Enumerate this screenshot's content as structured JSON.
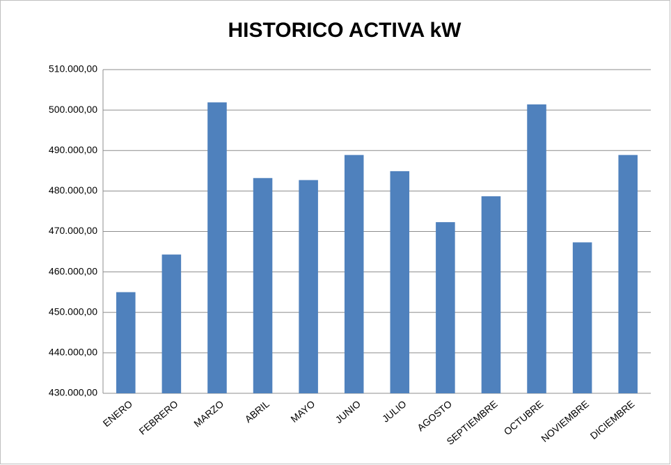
{
  "chart_data": {
    "type": "bar",
    "title": "HISTORICO ACTIVA kW",
    "categories": [
      "ENERO",
      "FEBRERO",
      "MARZO",
      "ABRIL",
      "MAYO",
      "JUNIO",
      "JULIO",
      "AGOSTO",
      "SEPTIEMBRE",
      "OCTUBRE",
      "NOVIEMBRE",
      "DICIEMBRE"
    ],
    "values": [
      455000,
      464300,
      501900,
      483200,
      482700,
      488900,
      484900,
      472300,
      478700,
      501400,
      467300,
      488900
    ],
    "color": "#4f81bd",
    "ylim": [
      430000,
      510000
    ],
    "yticks": [
      {
        "value": 430000,
        "label": "430.000,00"
      },
      {
        "value": 440000,
        "label": "440.000,00"
      },
      {
        "value": 450000,
        "label": "450.000,00"
      },
      {
        "value": 460000,
        "label": "460.000,00"
      },
      {
        "value": 470000,
        "label": "470.000,00"
      },
      {
        "value": 480000,
        "label": "480.000,00"
      },
      {
        "value": 490000,
        "label": "490.000,00"
      },
      {
        "value": 500000,
        "label": "500.000,00"
      },
      {
        "value": 510000,
        "label": "510.000,00"
      }
    ],
    "grid": true
  }
}
